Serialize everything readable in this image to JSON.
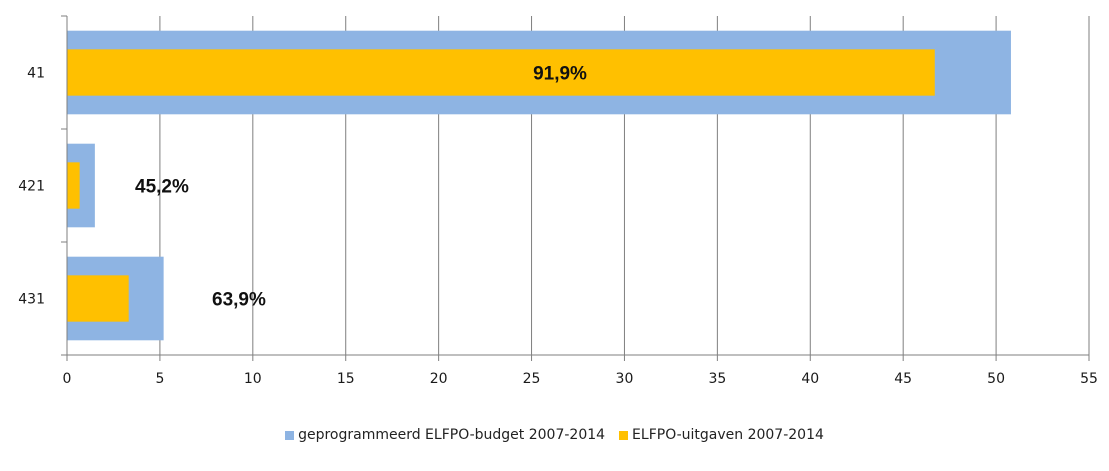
{
  "chart_data": {
    "type": "bar",
    "orientation": "horizontal",
    "categories": [
      "41",
      "421",
      "431"
    ],
    "series": [
      {
        "name": "geprogrammeerd ELFPO-budget 2007-2014",
        "color": "#8EB4E3",
        "values": [
          50.8,
          1.5,
          5.2
        ]
      },
      {
        "name": "ELFPO-uitgaven 2007-2014",
        "color": "#FFC000",
        "values": [
          46.7,
          0.68,
          3.32
        ]
      }
    ],
    "data_labels": [
      "91,9%",
      "45,2%",
      "63,9%"
    ],
    "xlim": [
      0,
      55
    ],
    "xticks": [
      "0",
      "5",
      "10",
      "15",
      "20",
      "25",
      "30",
      "35",
      "40",
      "45",
      "50",
      "55"
    ],
    "grid": "vertical",
    "legend_position": "bottom"
  }
}
